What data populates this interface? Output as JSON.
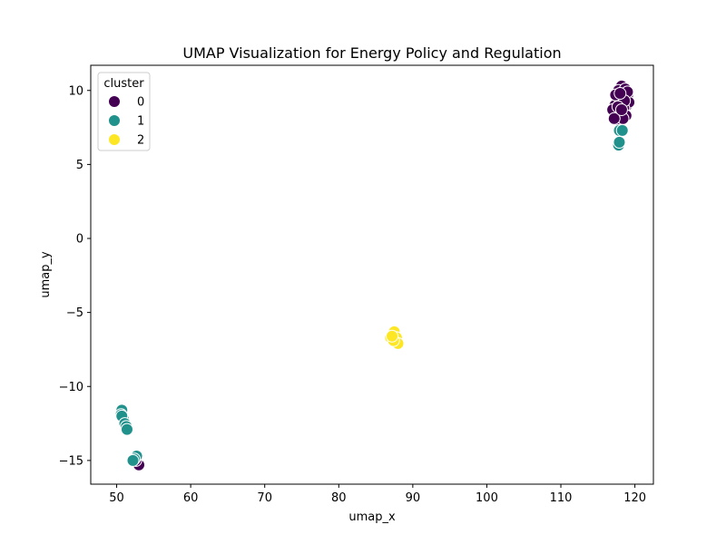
{
  "chart_data": {
    "type": "scatter",
    "title": "UMAP Visualization for Energy Policy and Regulation",
    "xlabel": "umap_x",
    "ylabel": "umap_y",
    "xlim": [
      46.5,
      122.5
    ],
    "ylim": [
      -16.6,
      11.7
    ],
    "xticks": [
      50,
      60,
      70,
      80,
      90,
      100,
      110,
      120
    ],
    "yticks": [
      -15,
      -10,
      -5,
      0,
      5,
      10
    ],
    "grid": false,
    "legend": {
      "title": "cluster",
      "placement": "top-left",
      "entries": [
        {
          "label": "0",
          "color": "#440154"
        },
        {
          "label": "1",
          "color": "#21918c"
        },
        {
          "label": "2",
          "color": "#fde725"
        }
      ]
    },
    "series": [
      {
        "name": "0",
        "color": "#440154",
        "points": [
          [
            118.2,
            10.3
          ],
          [
            117.8,
            10.0
          ],
          [
            118.7,
            10.1
          ],
          [
            119.0,
            9.6
          ],
          [
            118.4,
            9.5
          ],
          [
            117.6,
            9.4
          ],
          [
            117.3,
            9.0
          ],
          [
            118.0,
            9.1
          ],
          [
            118.9,
            9.0
          ],
          [
            119.2,
            9.2
          ],
          [
            118.5,
            8.8
          ],
          [
            117.5,
            8.6
          ],
          [
            117.0,
            8.7
          ],
          [
            118.1,
            8.4
          ],
          [
            118.8,
            8.3
          ],
          [
            117.9,
            8.0
          ],
          [
            118.4,
            8.1
          ],
          [
            117.2,
            8.1
          ],
          [
            117.4,
            9.7
          ],
          [
            119.0,
            9.9
          ],
          [
            118.6,
            9.3
          ],
          [
            117.7,
            8.9
          ],
          [
            118.2,
            8.7
          ],
          [
            118.0,
            9.8
          ],
          [
            52.9,
            -15.2
          ],
          [
            53.0,
            -15.3
          ],
          [
            52.6,
            -15.0
          ]
        ]
      },
      {
        "name": "1",
        "color": "#21918c",
        "points": [
          [
            117.9,
            7.3
          ],
          [
            118.3,
            7.3
          ],
          [
            117.8,
            6.3
          ],
          [
            117.9,
            6.5
          ],
          [
            50.7,
            -11.6
          ],
          [
            50.6,
            -11.9
          ],
          [
            50.9,
            -12.2
          ],
          [
            50.7,
            -12.0
          ],
          [
            51.1,
            -12.5
          ],
          [
            51.3,
            -12.7
          ],
          [
            51.4,
            -12.9
          ],
          [
            52.7,
            -14.7
          ],
          [
            52.4,
            -14.9
          ],
          [
            52.2,
            -15.0
          ]
        ]
      },
      {
        "name": "2",
        "color": "#fde725",
        "points": [
          [
            87.5,
            -6.3
          ],
          [
            87.0,
            -6.7
          ],
          [
            87.8,
            -6.7
          ],
          [
            88.0,
            -7.1
          ],
          [
            87.4,
            -6.9
          ],
          [
            87.2,
            -6.6
          ]
        ]
      }
    ]
  }
}
